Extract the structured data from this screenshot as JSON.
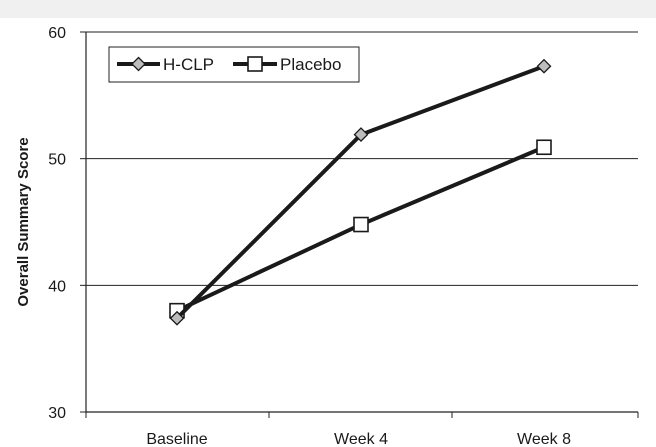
{
  "chart_data": {
    "type": "line",
    "categories": [
      "Baseline",
      "Week 4",
      "Week 8"
    ],
    "ylabel": "Overall Summary Score",
    "ylim": [
      30,
      60
    ],
    "yticks": [
      30,
      40,
      50,
      60
    ],
    "grid": true,
    "legend_position": "top-left",
    "series": [
      {
        "name": "H-CLP",
        "marker": "diamond",
        "values": [
          37.4,
          51.9,
          57.3
        ]
      },
      {
        "name": "Placebo",
        "marker": "square",
        "values": [
          38.0,
          44.8,
          50.9
        ]
      }
    ],
    "colors": {
      "line": "#1a1a1a",
      "marker_fill": "#bdbdbd",
      "grid": "#222222",
      "band": "#f0f0f0"
    }
  }
}
